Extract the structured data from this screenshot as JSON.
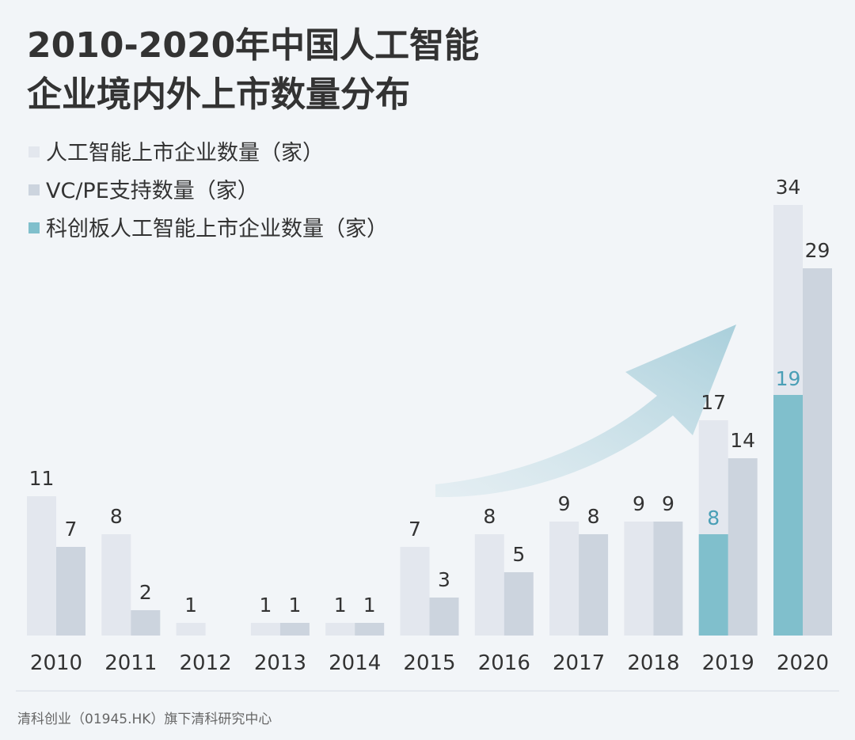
{
  "chart_data": {
    "type": "bar",
    "title": [
      "2010-2020年中国人工智能",
      "企业境内外上市数量分布"
    ],
    "categories": [
      "2010",
      "2011",
      "2012",
      "2013",
      "2014",
      "2015",
      "2016",
      "2017",
      "2018",
      "2019",
      "2020"
    ],
    "series": [
      {
        "name": "人工智能上市企业数量（家）",
        "color": "#e3e7ee",
        "values": [
          11,
          8,
          1,
          1,
          1,
          7,
          8,
          9,
          9,
          17,
          34
        ]
      },
      {
        "name": "VC/PE支持数量（家）",
        "color": "#ccd4de",
        "values": [
          7,
          2,
          null,
          1,
          1,
          3,
          5,
          8,
          9,
          14,
          29
        ]
      },
      {
        "name": "科创板人工智能上市企业数量（家）",
        "color": "#80bfcc",
        "label_color": "#4a9fb6",
        "values": [
          null,
          null,
          null,
          null,
          null,
          null,
          null,
          null,
          null,
          8,
          19
        ],
        "overlay": 0
      }
    ],
    "footer": "清科创业（01945.HK）旗下清科研究中心"
  }
}
